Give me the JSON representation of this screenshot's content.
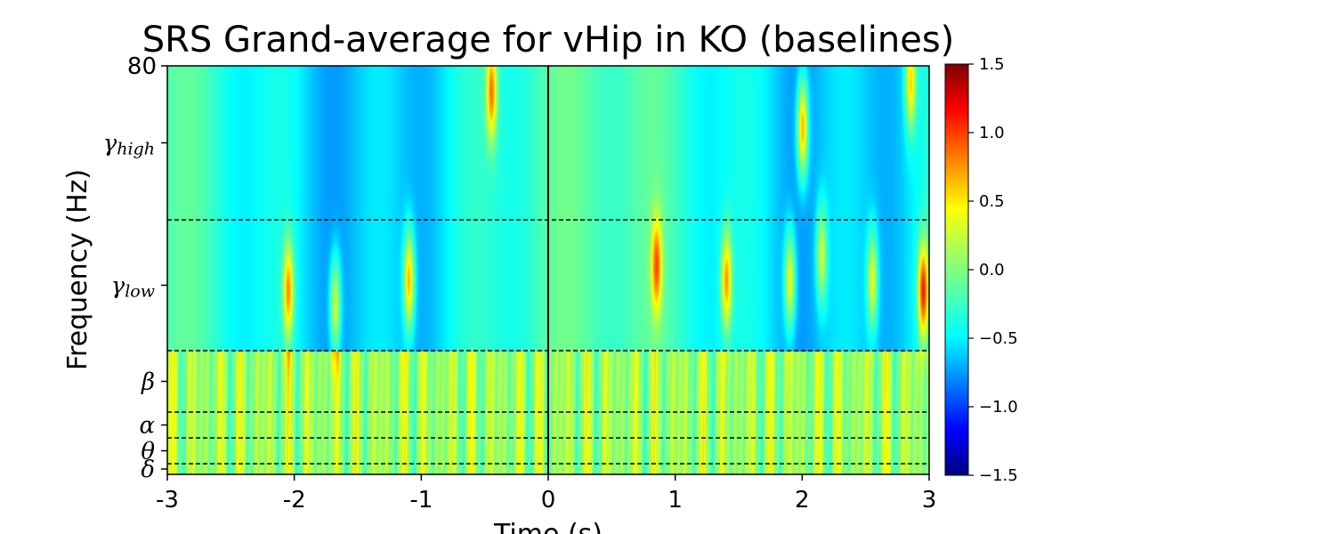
{
  "chart_data": {
    "type": "heatmap",
    "title": "SRS Grand-average for vHip in KO (baselines)",
    "xlabel": "Time (s)",
    "ylabel": "Frequency (Hz)",
    "xlim": [
      -3,
      3
    ],
    "ylim": [
      0,
      80
    ],
    "x_ticks": [
      {
        "value": -3,
        "label": "-3"
      },
      {
        "value": -2,
        "label": "-2"
      },
      {
        "value": -1,
        "label": "-1"
      },
      {
        "value": 0,
        "label": "0"
      },
      {
        "value": 1,
        "label": "1"
      },
      {
        "value": 2,
        "label": "2"
      },
      {
        "value": 3,
        "label": "3"
      }
    ],
    "y_top_tick": {
      "value": 80,
      "label": "80"
    },
    "bands": [
      {
        "symbol": "δ",
        "sub": "",
        "low": 0,
        "high": 2
      },
      {
        "symbol": "θ",
        "sub": "",
        "low": 2,
        "high": 7
      },
      {
        "symbol": "α",
        "sub": "",
        "low": 7,
        "high": 12
      },
      {
        "symbol": "β",
        "sub": "",
        "low": 12,
        "high": 24
      },
      {
        "symbol": "γ",
        "sub": "low",
        "low": 24,
        "high": 50
      },
      {
        "symbol": "γ",
        "sub": "high",
        "low": 50,
        "high": 80
      }
    ],
    "band_boundaries_hz": [
      2,
      7,
      12,
      24,
      50
    ],
    "event_marker_time": 0,
    "colorbar": {
      "colormap": "jet",
      "vmin": -1.5,
      "vmax": 1.5,
      "ticks": [
        {
          "value": 1.5,
          "label": "1.5"
        },
        {
          "value": 1.0,
          "label": "1.0"
        },
        {
          "value": 0.5,
          "label": "0.5"
        },
        {
          "value": 0.0,
          "label": "0.0"
        },
        {
          "value": -0.5,
          "label": "−0.5"
        },
        {
          "value": -1.0,
          "label": "−1.0"
        },
        {
          "value": -1.5,
          "label": "−1.5"
        }
      ]
    },
    "hotspots": [
      {
        "t": -2.05,
        "f": 36,
        "amp": 1.2
      },
      {
        "t": -1.68,
        "f": 33,
        "amp": 1.0
      },
      {
        "t": -1.1,
        "f": 38,
        "amp": 1.3
      },
      {
        "t": -0.45,
        "f": 75,
        "amp": 1.2
      },
      {
        "t": 0.85,
        "f": 41,
        "amp": 1.1
      },
      {
        "t": 1.4,
        "f": 38,
        "amp": 1.2
      },
      {
        "t": 1.9,
        "f": 38,
        "amp": 1.1
      },
      {
        "t": 2.0,
        "f": 68,
        "amp": 1.4
      },
      {
        "t": 2.15,
        "f": 43,
        "amp": 0.9
      },
      {
        "t": 2.55,
        "f": 38,
        "amp": 1.0
      },
      {
        "t": 2.85,
        "f": 77,
        "amp": 1.1
      },
      {
        "t": 2.95,
        "f": 36,
        "amp": 1.5
      }
    ]
  }
}
